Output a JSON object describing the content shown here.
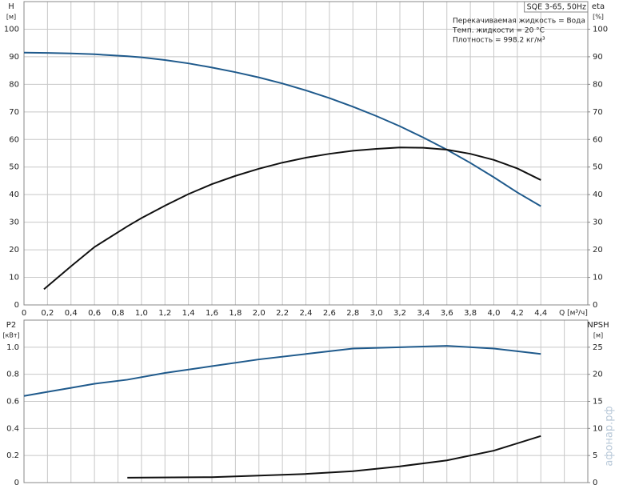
{
  "chart_data": [
    {
      "type": "line",
      "title": "SQE 3-65, 50Hz",
      "notes": [
        "Перекачиваемая жидкость = Вода",
        "Темп. жидкости = 20 °C",
        "Плотность = 998.2 кг/м³"
      ],
      "ylabel": "H",
      "yunit": "[м]",
      "y2label": "eta",
      "y2unit": "[%]",
      "xlabel": "Q [м³/ч]",
      "xlim": [
        0,
        4.8
      ],
      "xticks": [
        0,
        {
          "value": 0.2,
          "label": "0,2"
        },
        {
          "value": 0.4,
          "label": "0,4"
        },
        {
          "value": 0.6,
          "label": "0,6"
        },
        {
          "value": 0.8,
          "label": "0,8"
        },
        {
          "value": 1.0,
          "label": "1,0"
        },
        {
          "value": 1.2,
          "label": "1,2"
        },
        {
          "value": 1.4,
          "label": "1,4"
        },
        {
          "value": 1.6,
          "label": "1,6"
        },
        {
          "value": 1.8,
          "label": "1,8"
        },
        {
          "value": 2.0,
          "label": "2,0"
        },
        {
          "value": 2.2,
          "label": "2,2"
        },
        {
          "value": 2.4,
          "label": "2,4"
        },
        {
          "value": 2.6,
          "label": "2,6"
        },
        {
          "value": 2.8,
          "label": "2,8"
        },
        {
          "value": 3.0,
          "label": "3,0"
        },
        {
          "value": 3.2,
          "label": "3,2"
        },
        {
          "value": 3.4,
          "label": "3,4"
        },
        {
          "value": 3.6,
          "label": "3,6"
        },
        {
          "value": 3.8,
          "label": "3,8"
        },
        {
          "value": 4.0,
          "label": "4,0"
        },
        {
          "value": 4.2,
          "label": "4,2"
        },
        {
          "value": 4.4,
          "label": "4,4"
        }
      ],
      "ylim": [
        0,
        110
      ],
      "yticks": [
        0,
        10,
        20,
        30,
        40,
        50,
        60,
        70,
        80,
        90,
        100
      ],
      "y2lim": [
        0,
        110
      ],
      "y2ticks": [
        0,
        10,
        20,
        30,
        40,
        50,
        60,
        70,
        80,
        90,
        100
      ],
      "grid": true,
      "series": [
        {
          "name": "H",
          "color": "#1f5a8c",
          "x": [
            0,
            0.2,
            0.4,
            0.6,
            0.88,
            1.0,
            1.2,
            1.4,
            1.6,
            1.8,
            2.0,
            2.2,
            2.4,
            2.6,
            2.8,
            3.0,
            3.2,
            3.4,
            3.6,
            3.8,
            4.0,
            4.2,
            4.4
          ],
          "values": [
            91.5,
            91.4,
            91.2,
            90.9,
            90.2,
            89.8,
            88.8,
            87.6,
            86.1,
            84.4,
            82.5,
            80.3,
            77.8,
            75,
            71.9,
            68.5,
            64.8,
            60.7,
            56.3,
            51.5,
            46.3,
            40.8,
            35.8
          ]
        },
        {
          "name": "eta",
          "color": "#111111",
          "axis": "y2",
          "x": [
            0.17,
            0.4,
            0.6,
            0.88,
            1.0,
            1.2,
            1.4,
            1.6,
            1.8,
            2.0,
            2.2,
            2.4,
            2.6,
            2.8,
            3.0,
            3.2,
            3.4,
            3.6,
            3.8,
            4.0,
            4.2,
            4.4
          ],
          "values": [
            5.7,
            14,
            21,
            28.5,
            31.5,
            36,
            40.2,
            43.8,
            46.8,
            49.4,
            51.6,
            53.4,
            54.8,
            55.9,
            56.6,
            57.1,
            57.0,
            56.3,
            54.8,
            52.6,
            49.5,
            45.3
          ]
        }
      ]
    },
    {
      "type": "line",
      "ylabel": "P2",
      "yunit": "[кВт]",
      "y2label": "NPSH",
      "y2unit": "[м]",
      "xlim": [
        0,
        4.8
      ],
      "xgrid": [
        0,
        0.2,
        0.4,
        0.6,
        0.8,
        1.0,
        1.2,
        1.4,
        1.6,
        1.8,
        2.0,
        2.2,
        2.4,
        2.6,
        2.8,
        3.0,
        3.2,
        3.4,
        3.6,
        3.8,
        4.0,
        4.2,
        4.4,
        4.6
      ],
      "ylim": [
        0,
        1.2
      ],
      "yticks": [
        0,
        0.2,
        0.4,
        0.6,
        0.8,
        {
          "value": 1.0,
          "label": "1.0"
        }
      ],
      "y2lim": [
        0,
        30
      ],
      "y2ticks": [
        0,
        5,
        10,
        15,
        20,
        25
      ],
      "grid": true,
      "watermark": "афонар.рф",
      "series": [
        {
          "name": "P2",
          "color": "#1f5a8c",
          "x": [
            0,
            0.2,
            0.4,
            0.6,
            0.88,
            1.2,
            1.6,
            2.0,
            2.4,
            2.8,
            3.2,
            3.6,
            4.0,
            4.4
          ],
          "values": [
            0.64,
            0.67,
            0.7,
            0.73,
            0.76,
            0.81,
            0.86,
            0.91,
            0.95,
            0.99,
            1.0,
            1.01,
            0.99,
            0.95
          ]
        },
        {
          "name": "NPSH",
          "color": "#111111",
          "axis": "y2",
          "x": [
            0.88,
            1.6,
            2.0,
            2.4,
            2.8,
            3.2,
            3.6,
            4.0,
            4.4
          ],
          "values": [
            0.9,
            1.0,
            1.3,
            1.6,
            2.1,
            3.0,
            4.1,
            5.9,
            8.6
          ]
        }
      ]
    }
  ]
}
